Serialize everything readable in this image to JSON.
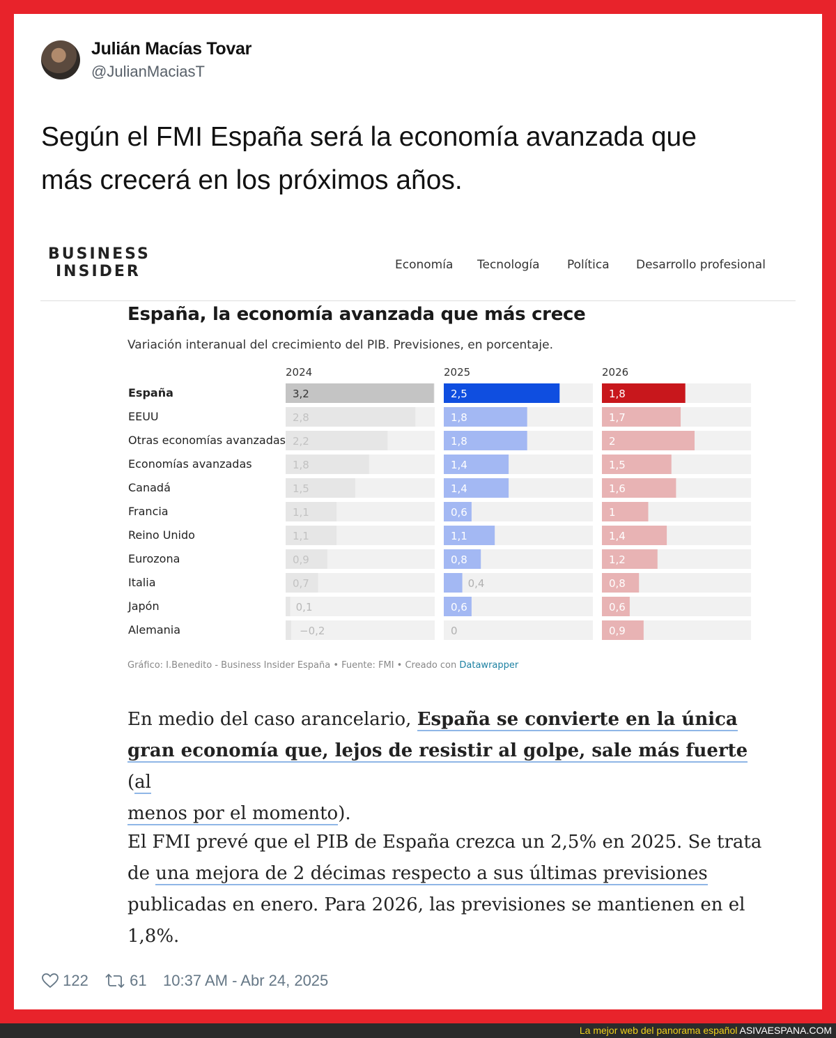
{
  "tweet": {
    "author_name": "Julián Macías Tovar",
    "author_handle": "@JulianMaciasT",
    "text_line1": "Según el FMI España será la economía avanzada que",
    "text_line2": "más crecerá en los próximos años.",
    "likes": "122",
    "retweets": "61",
    "timestamp": "10:37 AM - Abr 24, 2025"
  },
  "article": {
    "logo_line1": "BUSINESS",
    "logo_line2": "INSIDER",
    "nav": [
      "Economía",
      "Tecnología",
      "Política",
      "Desarrollo profesional"
    ],
    "p1": {
      "a": "En medio del caso arancelario, ",
      "b": "España se convierte en la única",
      "c": "gran economía que, lejos de resistir al golpe, sale más fuerte",
      "d": " (",
      "e": "al",
      "f": "menos por el momento",
      "g": ")."
    },
    "p2": {
      "l1": "El FMI prevé que el PIB de España crezca un 2,5% en 2025. Se trata",
      "l2a": "de ",
      "l2b": "una mejora de 2 décimas respecto a sus últimas previsiones",
      "l3": "publicadas en enero. Para 2026, las previsiones se mantienen en el",
      "l4": "1,8%."
    }
  },
  "chart_data": {
    "type": "bar",
    "title": "España, la economía avanzada que más crece",
    "subtitle": "Variación interanual del crecimiento del PIB. Previsiones, en porcentaje.",
    "credit": "Gráfico: I.Benedito - Business Insider España • Fuente: FMI • Creado con ",
    "credit_link": "Datawrapper",
    "categories": [
      "España",
      "EEUU",
      "Otras economías avanzadas",
      "Economías avanzadas",
      "Canadá",
      "Francia",
      "Reino Unido",
      "Eurozona",
      "Italia",
      "Japón",
      "Alemania"
    ],
    "series": [
      {
        "name": "2024",
        "values": [
          3.2,
          2.8,
          2.2,
          1.8,
          1.5,
          1.1,
          1.1,
          0.9,
          0.7,
          0.1,
          -0.2
        ],
        "labels": [
          "3,2",
          "2,8",
          "2,2",
          "1,8",
          "1,5",
          "1,1",
          "1,1",
          "0,9",
          "0,7",
          "0,1",
          "−0,2"
        ],
        "highlight_color": "#c4c4c4",
        "color": "#e6e6e6"
      },
      {
        "name": "2025",
        "values": [
          2.5,
          1.8,
          1.8,
          1.4,
          1.4,
          0.6,
          1.1,
          0.8,
          0.4,
          0.6,
          0
        ],
        "labels": [
          "2,5",
          "1,8",
          "1,8",
          "1,4",
          "1,4",
          "0,6",
          "1,1",
          "0,8",
          "0,4",
          "0,6",
          "0"
        ],
        "highlight_color": "#0f4ee0",
        "color": "#a3b8f3"
      },
      {
        "name": "2026",
        "values": [
          1.8,
          1.7,
          2,
          1.5,
          1.6,
          1,
          1.4,
          1.2,
          0.8,
          0.6,
          0.9
        ],
        "labels": [
          "1,8",
          "1,7",
          "2",
          "1,5",
          "1,6",
          "1",
          "1,4",
          "1,2",
          "0,8",
          "0,6",
          "0,9"
        ],
        "highlight_color": "#c8171c",
        "color": "#e8b3b4"
      }
    ],
    "xlim": [
      -0.2,
      3.2
    ],
    "highlighted_category": "España"
  }
}
